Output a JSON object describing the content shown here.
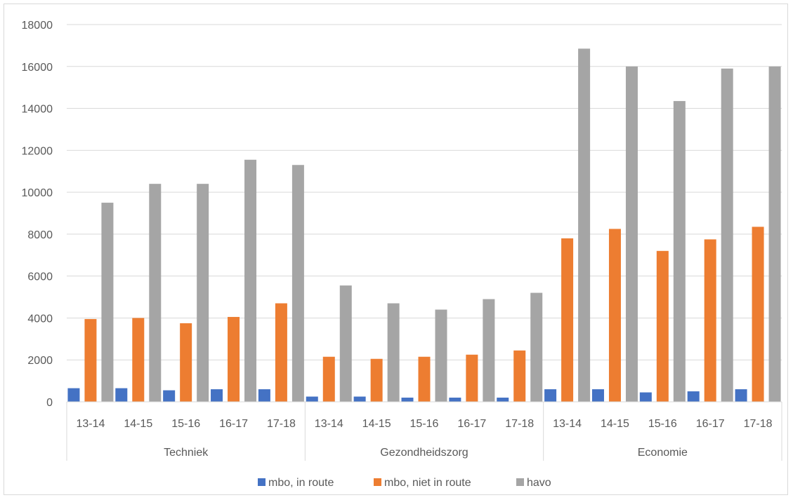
{
  "chart_data": {
    "type": "bar",
    "groups": [
      {
        "name": "Techniek",
        "years": [
          "13-14",
          "14-15",
          "15-16",
          "16-17",
          "17-18"
        ]
      },
      {
        "name": "Gezondheidszorg",
        "years": [
          "13-14",
          "14-15",
          "15-16",
          "16-17",
          "17-18"
        ]
      },
      {
        "name": "Economie",
        "years": [
          "13-14",
          "14-15",
          "15-16",
          "16-17",
          "17-18"
        ]
      }
    ],
    "series": [
      {
        "name": "mbo, in route",
        "color": "#4472C4",
        "values": [
          650,
          650,
          550,
          600,
          600,
          250,
          250,
          200,
          200,
          200,
          600,
          600,
          450,
          500,
          600
        ]
      },
      {
        "name": "mbo, niet in route",
        "color": "#ED7D31",
        "values": [
          3950,
          4000,
          3750,
          4050,
          4700,
          2150,
          2050,
          2150,
          2250,
          2450,
          7800,
          8250,
          7200,
          7750,
          8350
        ]
      },
      {
        "name": "havo",
        "color": "#A5A5A5",
        "values": [
          9500,
          10400,
          10400,
          11550,
          11300,
          5550,
          4700,
          4400,
          4900,
          5200,
          16850,
          16000,
          14350,
          15900,
          16000
        ]
      }
    ],
    "yticks": [
      "0",
      "2000",
      "4000",
      "6000",
      "8000",
      "10000",
      "12000",
      "14000",
      "16000",
      "18000"
    ],
    "ylim": [
      0,
      18000
    ],
    "grid": true,
    "legend_position": "bottom"
  }
}
